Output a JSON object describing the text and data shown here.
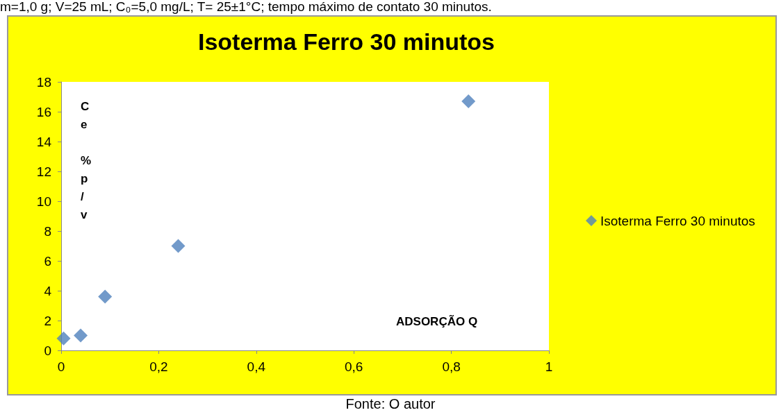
{
  "chart_data": {
    "type": "scatter",
    "title": "Isoterma Ferro 30 minutos",
    "xlabel": "ADSORÇÃO Q",
    "ylabel": "Ce %p/v",
    "annotations": [
      "m=1,0 g; V=25 mL; C₀=5,0 mg/L; T= 25±1°C; tempo máximo de contato 30 minutos.",
      "Fonte: O autor"
    ],
    "x": [
      0.005,
      0.04,
      0.09,
      0.24,
      0.835
    ],
    "series": [
      {
        "name": "Isoterma Ferro 30 minutos",
        "color": "#4f81bd",
        "values": [
          0.8,
          1.0,
          3.6,
          7.0,
          16.7
        ]
      }
    ],
    "xlim": [
      0,
      1
    ],
    "xticks": [
      0,
      {
        "value": 0.2,
        "label": "0,2"
      },
      {
        "value": 0.4,
        "label": "0,4"
      },
      {
        "value": 0.6,
        "label": "0,6"
      },
      {
        "value": 0.8,
        "label": "0,8"
      },
      1
    ],
    "ylim": [
      0,
      18
    ],
    "yticks": [
      0,
      2,
      4,
      6,
      8,
      10,
      12,
      14,
      16,
      18
    ],
    "grid": false,
    "legend": "right",
    "marker": "diamond"
  }
}
